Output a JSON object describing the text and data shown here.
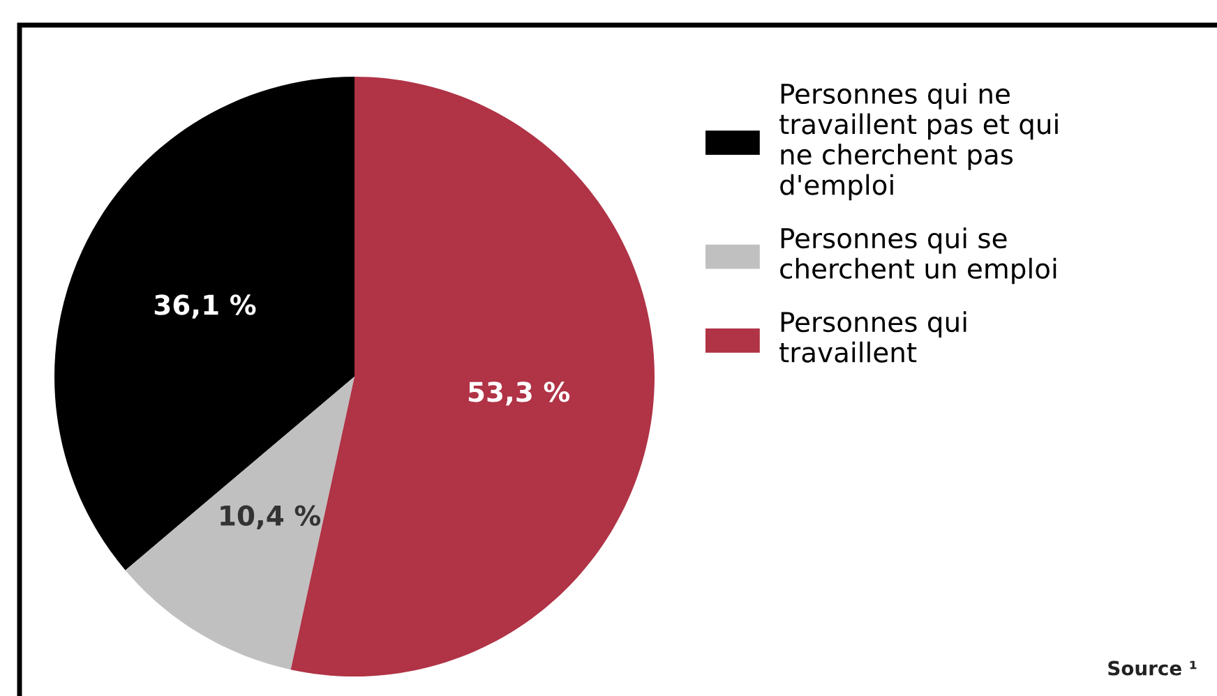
{
  "chart_data": {
    "type": "pie",
    "categories": [
      "Personnes qui ne travaillent pas et qui ne cherchent pas d'emploi",
      "Personnes qui se cherchent un emploi",
      "Personnes qui travaillent"
    ],
    "values": [
      36.1,
      10.4,
      53.3
    ],
    "colors": [
      "#000000",
      "#c0c0c0",
      "#b03346"
    ],
    "value_labels": [
      "36,1 %",
      "10,4 %",
      "53,3 %"
    ],
    "legend": "right",
    "annotations": [
      "Source ¹"
    ]
  }
}
